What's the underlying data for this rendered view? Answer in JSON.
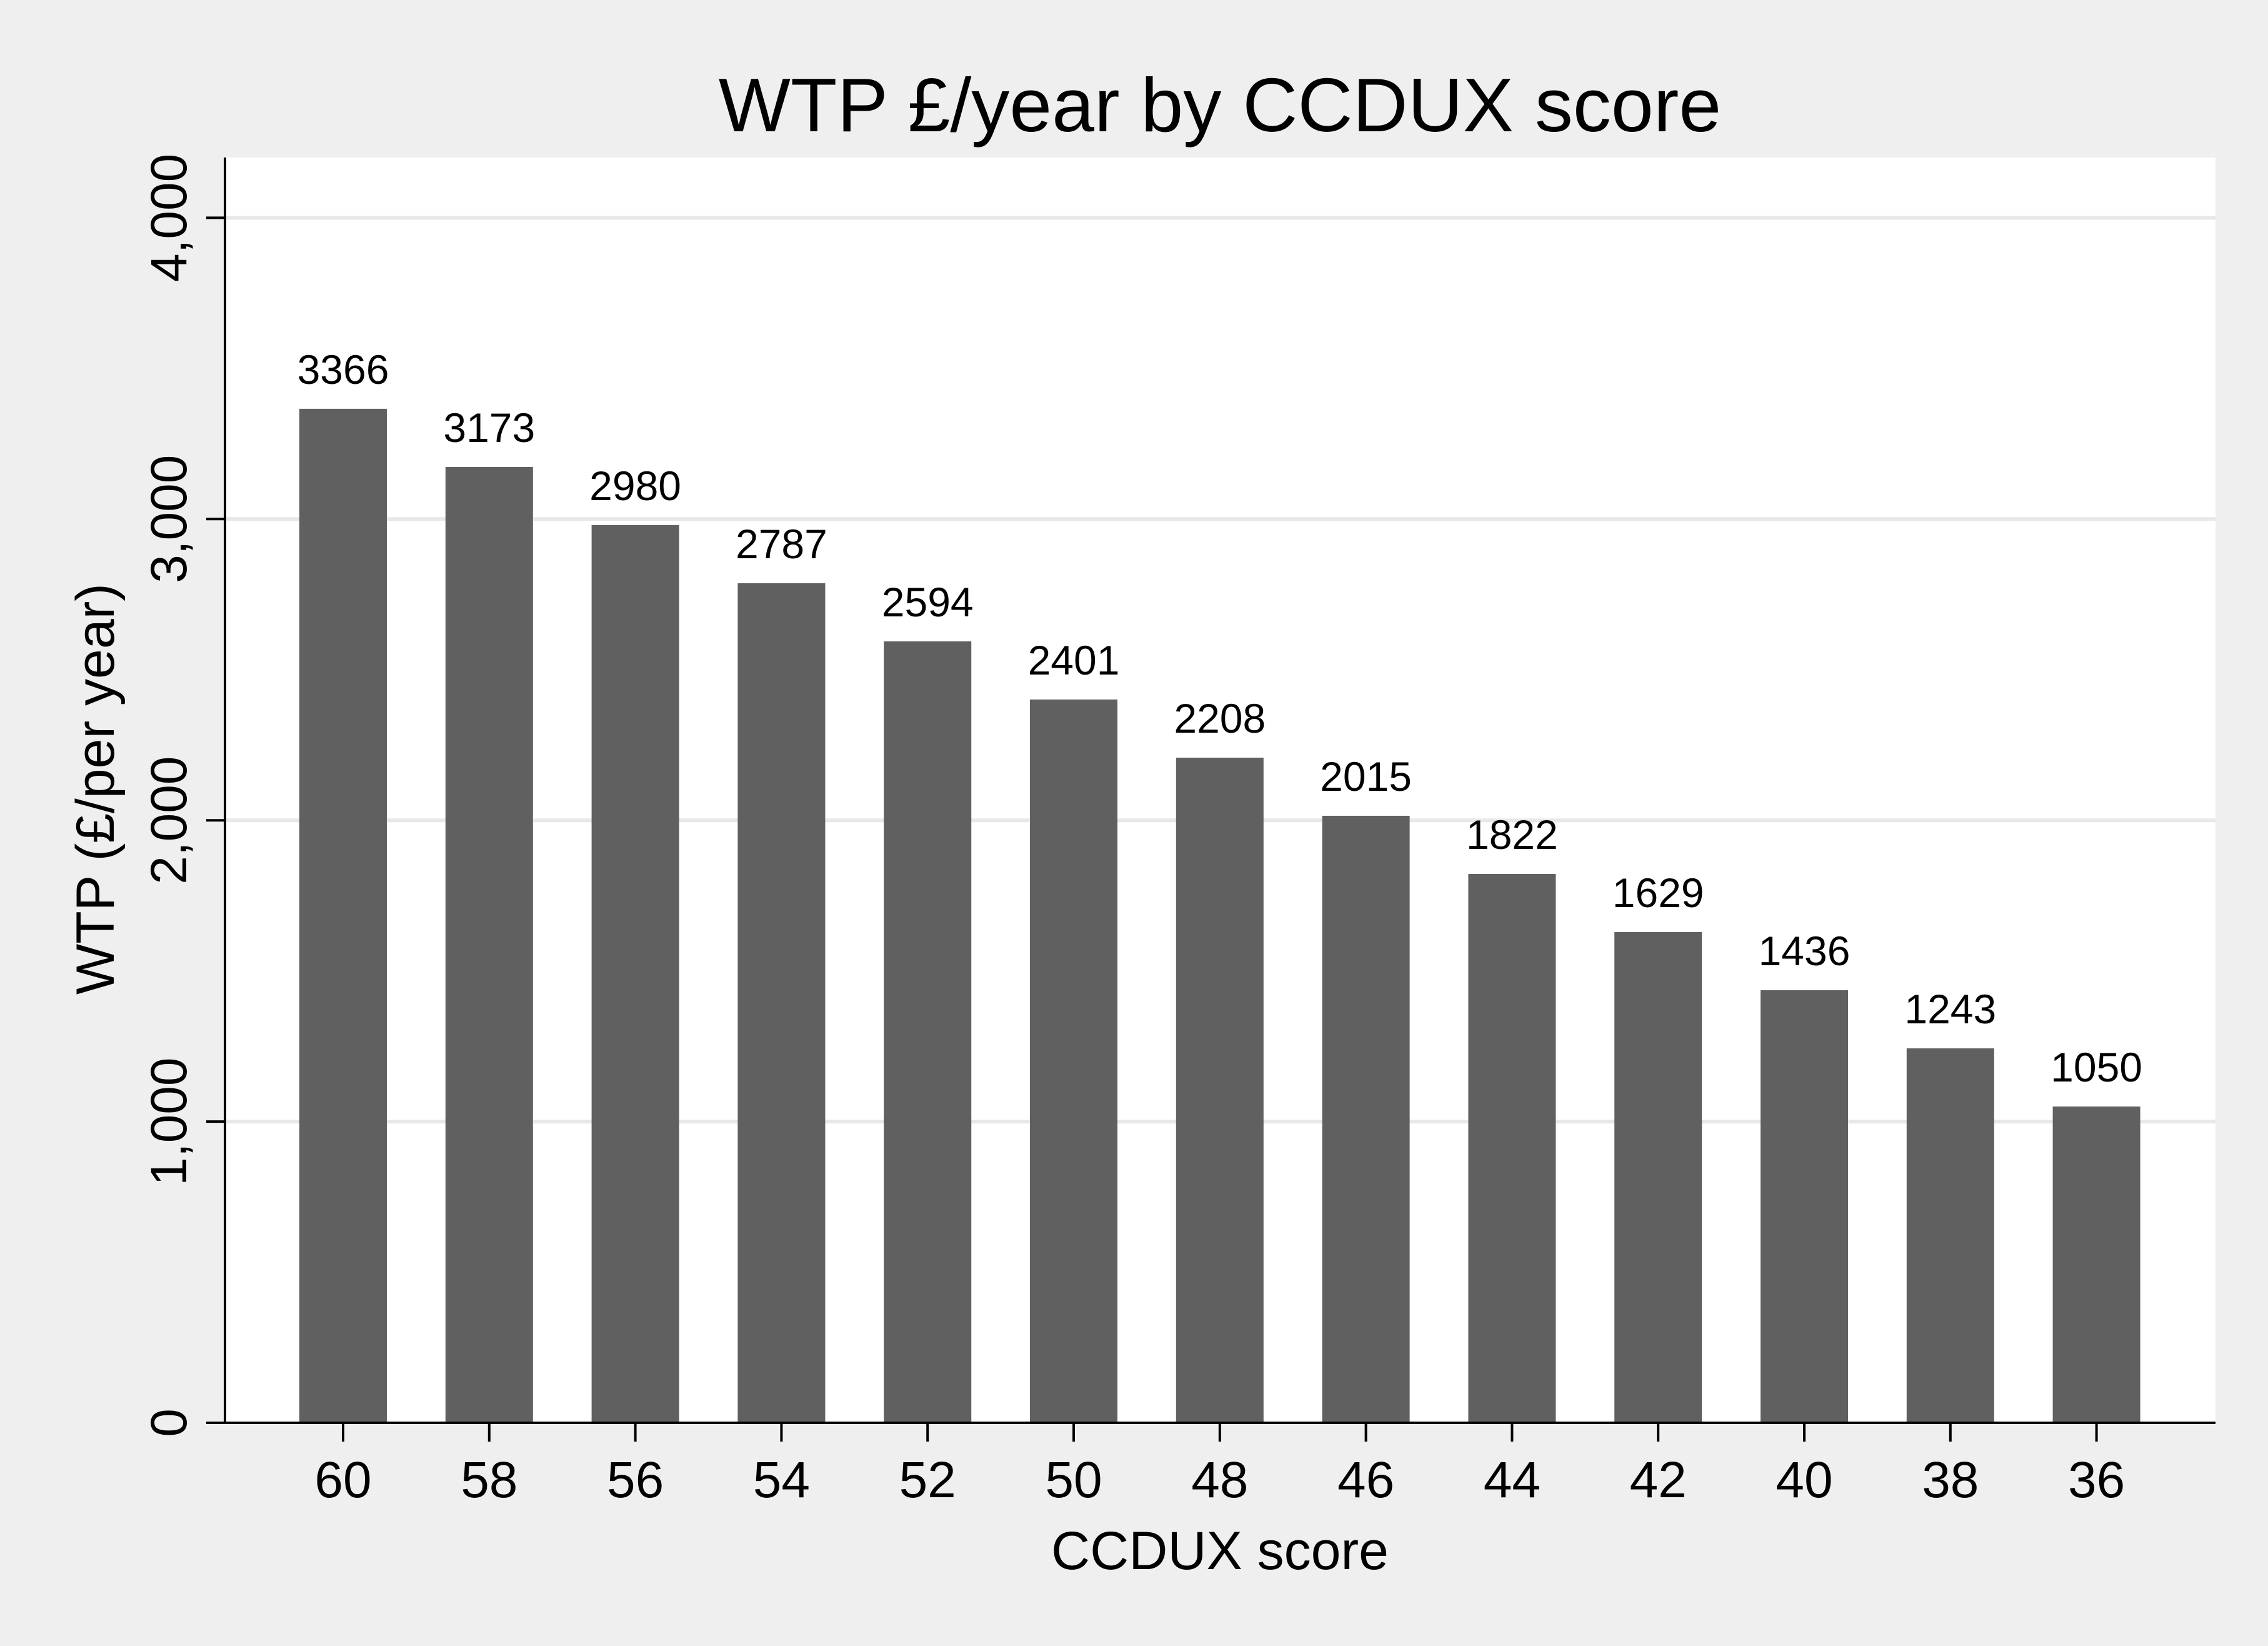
{
  "chart_data": {
    "type": "bar",
    "title": "WTP £/year by CCDUX  score",
    "xlabel": "CCDUX  score",
    "ylabel": "WTP  (£/per year)",
    "categories": [
      "60",
      "58",
      "56",
      "54",
      "52",
      "50",
      "48",
      "46",
      "44",
      "42",
      "40",
      "38",
      "36"
    ],
    "values": [
      3366,
      3173,
      2980,
      2787,
      2594,
      2401,
      2208,
      2015,
      1822,
      1629,
      1436,
      1243,
      1050
    ],
    "value_labels": [
      "3366",
      "3173",
      "2980",
      "2787",
      "2594",
      "2401",
      "2208",
      "2015",
      "1822",
      "1629",
      "1436",
      "1243",
      "1050"
    ],
    "yticks": [
      0,
      1000,
      2000,
      3000,
      4000
    ],
    "ytick_labels": [
      "0",
      "1,000",
      "2,000",
      "3,000",
      "4,000"
    ],
    "ylim": [
      0,
      4200
    ],
    "grid": true,
    "legend": "none",
    "colors": {
      "bar": "#606060",
      "plot_background": "#ffffff",
      "page_background": "#efefef",
      "gridline": "#e8e8e8",
      "axis": "#000000"
    }
  }
}
